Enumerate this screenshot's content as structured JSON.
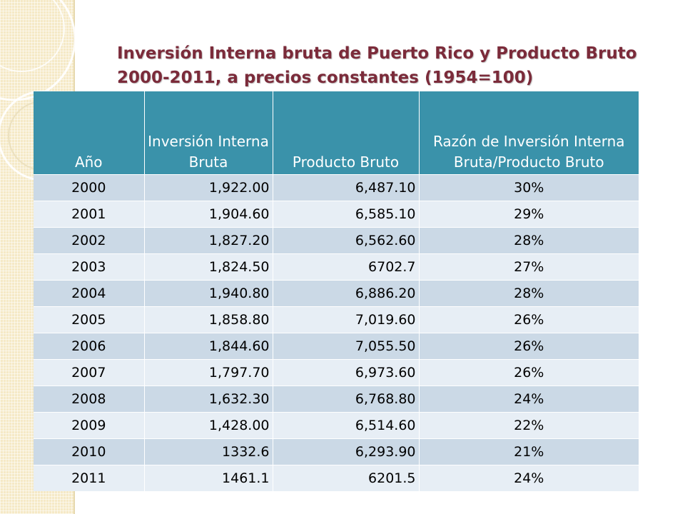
{
  "title": "Inversión Interna bruta de Puerto Rico y Producto Bruto 2000-2011, a precios constantes (1954=100)",
  "colors": {
    "title": "#7b2b3a",
    "header_bg": "#3a92aa",
    "row_dark": "#cbd9e6",
    "row_light": "#e7eef5",
    "side_band": "#f5e9c6"
  },
  "table": {
    "headers": {
      "year": "Año",
      "investment": "Inversión Interna Bruta",
      "product": "Producto Bruto",
      "ratio": "Razón de Inversión Interna Bruta/Producto Bruto"
    },
    "rows": [
      {
        "year": "2000",
        "investment": "1,922.00",
        "product": "6,487.10",
        "ratio": "30%"
      },
      {
        "year": "2001",
        "investment": "1,904.60",
        "product": "6,585.10",
        "ratio": "29%"
      },
      {
        "year": "2002",
        "investment": "1,827.20",
        "product": "6,562.60",
        "ratio": "28%"
      },
      {
        "year": "2003",
        "investment": "1,824.50",
        "product": "6702.7",
        "ratio": "27%"
      },
      {
        "year": "2004",
        "investment": "1,940.80",
        "product": "6,886.20",
        "ratio": "28%"
      },
      {
        "year": "2005",
        "investment": "1,858.80",
        "product": "7,019.60",
        "ratio": "26%"
      },
      {
        "year": "2006",
        "investment": "1,844.60",
        "product": "7,055.50",
        "ratio": "26%"
      },
      {
        "year": "2007",
        "investment": "1,797.70",
        "product": "6,973.60",
        "ratio": "26%"
      },
      {
        "year": "2008",
        "investment": "1,632.30",
        "product": "6,768.80",
        "ratio": "24%"
      },
      {
        "year": "2009",
        "investment": "1,428.00",
        "product": "6,514.60",
        "ratio": "22%"
      },
      {
        "year": "2010",
        "investment": "1332.6",
        "product": "6,293.90",
        "ratio": "21%"
      },
      {
        "year": "2011",
        "investment": "1461.1",
        "product": "6201.5",
        "ratio": "24%"
      }
    ]
  }
}
